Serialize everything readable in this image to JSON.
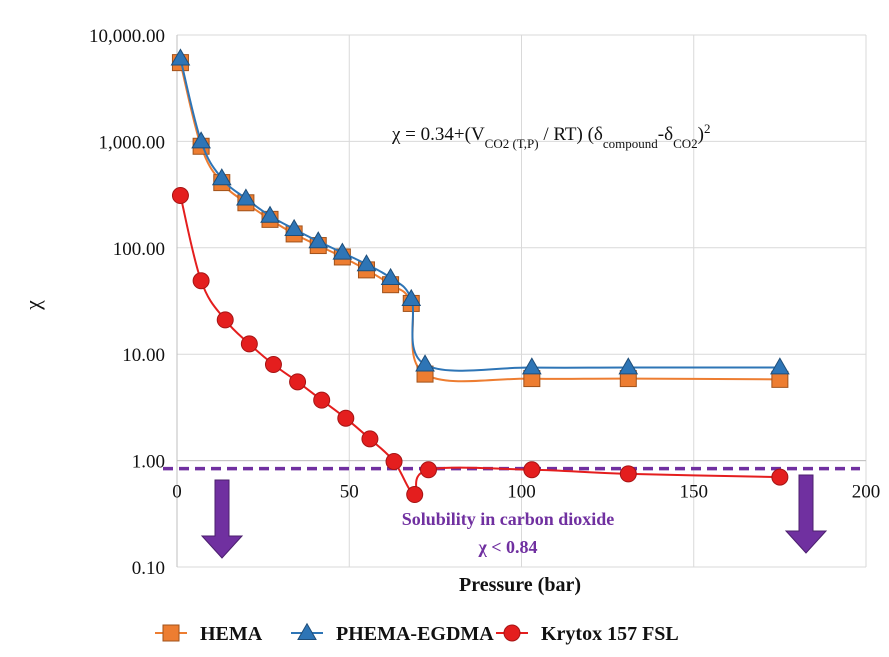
{
  "chart_data": {
    "type": "line",
    "title": "",
    "xlabel": "Pressure (bar)",
    "ylabel": "χ",
    "xlim": [
      0,
      200
    ],
    "ylim": [
      0.1,
      10000
    ],
    "yscale": "log",
    "grid": true,
    "legend_position": "bottom",
    "x_ticks": [
      "0",
      "50",
      "100",
      "150",
      "200"
    ],
    "y_ticks": [
      "0.10",
      "1.00",
      "10.00",
      "100.00",
      "1,000.00",
      "10,000.00"
    ],
    "series": [
      {
        "name": "HEMA",
        "marker": "square",
        "color": "#ed7d31",
        "points": [
          [
            1,
            5500
          ],
          [
            7,
            900
          ],
          [
            13,
            410
          ],
          [
            20,
            265
          ],
          [
            27,
            185
          ],
          [
            34,
            135
          ],
          [
            41,
            105
          ],
          [
            48,
            82
          ],
          [
            55,
            62
          ],
          [
            62,
            45
          ],
          [
            68,
            30
          ],
          [
            72,
            6.5
          ],
          [
            103,
            5.9
          ],
          [
            131,
            5.9
          ],
          [
            175,
            5.8
          ]
        ]
      },
      {
        "name": "PHEMA-EGDMA",
        "marker": "triangle",
        "color": "#2e75b6",
        "points": [
          [
            1,
            6000
          ],
          [
            7,
            1000
          ],
          [
            13,
            450
          ],
          [
            20,
            290
          ],
          [
            27,
            200
          ],
          [
            34,
            150
          ],
          [
            41,
            115
          ],
          [
            48,
            90
          ],
          [
            55,
            70
          ],
          [
            62,
            52
          ],
          [
            68,
            33
          ],
          [
            72,
            8.0
          ],
          [
            103,
            7.5
          ],
          [
            131,
            7.5
          ],
          [
            175,
            7.5
          ]
        ]
      },
      {
        "name": "Krytox 157 FSL",
        "marker": "circle",
        "color": "#e41e1e",
        "points": [
          [
            1,
            310
          ],
          [
            7,
            49
          ],
          [
            14,
            21
          ],
          [
            21,
            12.5
          ],
          [
            28,
            8.0
          ],
          [
            35,
            5.5
          ],
          [
            42,
            3.7
          ],
          [
            49,
            2.5
          ],
          [
            56,
            1.6
          ],
          [
            63,
            0.98
          ],
          [
            69,
            0.48
          ],
          [
            73,
            0.82
          ],
          [
            103,
            0.82
          ],
          [
            131,
            0.75
          ],
          [
            175,
            0.7
          ]
        ]
      }
    ],
    "threshold": {
      "value": 0.84,
      "color": "#7030a0",
      "style": "dashed"
    },
    "annotations": {
      "solubility_line1": "Solubility in carbon dioxide",
      "solubility_line2": "χ < 0.84",
      "equation": {
        "prefix": "χ = 0.34+(V",
        "sub1": "CO2 (T,P)",
        "mid1": " / RT) (δ",
        "sub2": "compound",
        "mid2": "-δ",
        "sub3": "CO2",
        "tail": ")",
        "sup": "2"
      }
    },
    "arrow_color": "#7030a0"
  }
}
